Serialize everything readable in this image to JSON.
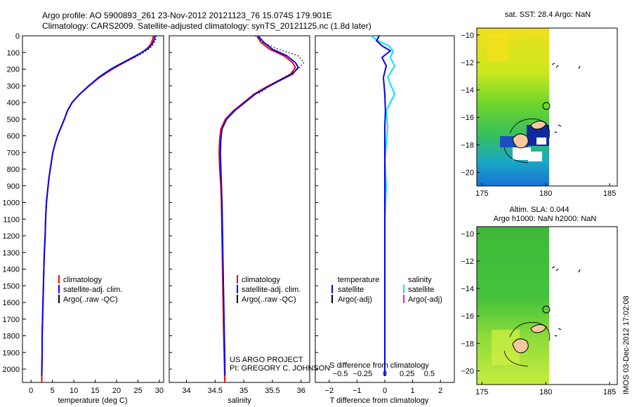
{
  "header": {
    "line1": "Argo profile: AO 5900893_261 23-Nov-2012 20121123_76 15.074S 179.901E",
    "line2": "Climatology: CARS2009. Satellite-adjusted climatology: synTS_20121125.nc (1.8d later)"
  },
  "credit": {
    "line1": "US ARGO PROJECT",
    "line2": "PI: GREGORY C. JOHNSON"
  },
  "stamp": "IMOS 03-Dec-2012 17:02:08",
  "colors": {
    "climatology": "#ff0000",
    "satellite": "#0000ff",
    "argo": "#000000",
    "sal_satellite": "#00e5ff",
    "sal_argo": "#ff00ff"
  },
  "chart_data": [
    {
      "type": "line",
      "xlabel": "temperature (deg C)",
      "xlim": [
        -2,
        31
      ],
      "xticks": [
        0,
        5,
        10,
        15,
        20,
        25,
        30
      ],
      "ylim": [
        2080,
        0
      ],
      "yticks": [
        0,
        100,
        200,
        300,
        400,
        500,
        600,
        700,
        800,
        900,
        1000,
        1100,
        1200,
        1300,
        1400,
        1500,
        1600,
        1700,
        1800,
        1900,
        2000
      ],
      "legend": [
        "climatology",
        "satellite-adj. clim.",
        "Argo(..raw -QC)"
      ],
      "series": [
        {
          "name": "climatology",
          "color": "#ff0000",
          "x": [
            28.6,
            28.4,
            28.0,
            27.2,
            25.9,
            24.3,
            22.5,
            20.7,
            19.0,
            17.5,
            16.0,
            13.6,
            11.4,
            9.6,
            8.5,
            7.8,
            7.0,
            6.2,
            5.6,
            5.1,
            4.8,
            4.5,
            4.2,
            4.0,
            3.8,
            3.6,
            3.5,
            3.4,
            3.3,
            3.1,
            2.9,
            2.8,
            2.7,
            2.6,
            2.6,
            2.5
          ],
          "y": [
            0,
            25,
            50,
            75,
            100,
            125,
            150,
            175,
            200,
            225,
            250,
            300,
            350,
            400,
            450,
            500,
            550,
            600,
            650,
            700,
            750,
            800,
            850,
            900,
            950,
            1000,
            1050,
            1100,
            1200,
            1300,
            1500,
            1600,
            1700,
            1800,
            1900,
            2080
          ]
        },
        {
          "name": "satellite-adj. clim.",
          "color": "#0000ff",
          "x": [
            29.0,
            28.8,
            28.3,
            27.4,
            25.9,
            24.1,
            22.3,
            20.4,
            18.7,
            17.2,
            15.8,
            13.5,
            11.4,
            9.6,
            8.5,
            7.8,
            7.0,
            6.2,
            5.6,
            5.1,
            4.8,
            4.5,
            4.2,
            4.0,
            3.8,
            3.6,
            3.5,
            3.4,
            3.3,
            3.1,
            2.9,
            2.8,
            2.7,
            2.6,
            2.6,
            2.5
          ],
          "y": [
            0,
            25,
            50,
            75,
            100,
            125,
            150,
            175,
            200,
            225,
            250,
            300,
            350,
            400,
            450,
            500,
            550,
            600,
            650,
            700,
            750,
            800,
            850,
            900,
            950,
            1000,
            1050,
            1100,
            1200,
            1300,
            1500,
            1600,
            1700,
            1800,
            1900,
            2040
          ]
        },
        {
          "name": "Argo(..raw -QC)",
          "color": "#000000",
          "x": [
            29.3,
            29.1,
            28.7,
            27.8,
            26.4,
            24.6,
            22.6,
            20.6,
            18.8,
            17.2,
            15.7
          ],
          "y": [
            0,
            25,
            50,
            75,
            100,
            125,
            150,
            175,
            200,
            225,
            250
          ]
        }
      ]
    },
    {
      "type": "line",
      "xlabel": "salinity",
      "xlim": [
        33.7,
        36.15
      ],
      "xticks": [
        34,
        34.5,
        35,
        35.5,
        36
      ],
      "ylim": [
        2080,
        0
      ],
      "legend": [
        "climatology",
        "satellite-adj. clim.",
        "Argo(..raw -QC)"
      ],
      "series": [
        {
          "name": "climatology",
          "color": "#ff0000",
          "x": [
            35.23,
            35.3,
            35.45,
            35.7,
            35.85,
            35.9,
            35.82,
            35.6,
            35.38,
            35.18,
            35.0,
            34.82,
            34.68,
            34.6,
            34.58,
            34.57,
            34.58,
            34.6,
            34.61,
            34.62,
            34.63,
            34.64,
            34.65,
            34.66,
            34.67
          ],
          "y": [
            0,
            40,
            80,
            120,
            160,
            190,
            230,
            270,
            310,
            350,
            400,
            450,
            500,
            560,
            620,
            700,
            800,
            900,
            1000,
            1200,
            1400,
            1600,
            1800,
            1950,
            2080
          ]
        },
        {
          "name": "satellite-adj. clim.",
          "color": "#0000ff",
          "x": [
            35.25,
            35.35,
            35.5,
            35.75,
            35.9,
            35.95,
            35.85,
            35.62,
            35.4,
            35.2,
            35.02,
            34.84,
            34.7,
            34.62,
            34.6,
            34.59,
            34.6,
            34.61,
            34.62,
            34.63,
            34.64,
            34.65,
            34.66,
            34.67,
            34.67
          ],
          "y": [
            0,
            40,
            80,
            120,
            160,
            190,
            230,
            270,
            310,
            350,
            400,
            450,
            500,
            560,
            620,
            700,
            800,
            900,
            1000,
            1200,
            1400,
            1600,
            1800,
            1950,
            2040
          ]
        },
        {
          "name": "Argo(..raw -QC)",
          "color": "#000000",
          "x": [
            35.2,
            35.33,
            35.6,
            35.95,
            36.05,
            35.95,
            35.7,
            35.45,
            35.25
          ],
          "y": [
            0,
            40,
            80,
            120,
            160,
            200,
            250,
            300,
            350
          ]
        }
      ]
    },
    {
      "type": "line",
      "xlabel_top": "S difference from climatology",
      "xlabel": "T difference from climatology",
      "xlim_T": [
        -2.5,
        2.5
      ],
      "xticks_T": [
        -2,
        -1,
        0,
        1,
        2
      ],
      "xticks_S": [
        -0.5,
        -0.25,
        0,
        0.25,
        0.5
      ],
      "ylim": [
        2080,
        0
      ],
      "legend_headers": [
        "temperature",
        "salinity"
      ],
      "legend": [
        "satellite",
        "Argo(-adj)",
        "satellite",
        "Argo(-adj)"
      ],
      "series": [
        {
          "name": "satellite",
          "color": "#0000ff",
          "x": [
            -0.2,
            -0.3,
            -0.1,
            0.2,
            -0.1,
            0.05,
            -0.05,
            0,
            0.02,
            0.0,
            0.0,
            0.0,
            0.0,
            0.0,
            0.0,
            0.0,
            0.0,
            0.0,
            0.0,
            0.0
          ],
          "y": [
            0,
            30,
            60,
            90,
            130,
            180,
            250,
            350,
            450,
            550,
            650,
            750,
            900,
            1100,
            1300,
            1500,
            1700,
            1850,
            1950,
            2040
          ]
        },
        {
          "name": "satellite",
          "color": "#00e5ff",
          "x": [
            -0.5,
            -0.25,
            0.15,
            0.3,
            0.2,
            0.35,
            0.1,
            0.35,
            0.05,
            0.1,
            0.05,
            0.0,
            0.05,
            0.0,
            0.0,
            0.0,
            0.0,
            0.0,
            0.0,
            0.0
          ],
          "y": [
            0,
            30,
            60,
            90,
            130,
            180,
            250,
            350,
            450,
            550,
            650,
            750,
            900,
            1100,
            1300,
            1500,
            1700,
            1850,
            1950,
            2040
          ]
        }
      ]
    },
    {
      "type": "heatmap",
      "title": "sat. SST: 28.4  Argo: NaN",
      "xticks": [
        175,
        180,
        185
      ],
      "yticks": [
        -10,
        -12,
        -14,
        -16,
        -18,
        -20
      ]
    },
    {
      "type": "heatmap",
      "title_line1": "Altim. SLA: 0.044",
      "title_line2": "Argo h1000: NaN h2000: NaN",
      "xticks": [
        175,
        180,
        185
      ],
      "yticks": [
        -10,
        -12,
        -14,
        -16,
        -18,
        -20
      ]
    }
  ]
}
